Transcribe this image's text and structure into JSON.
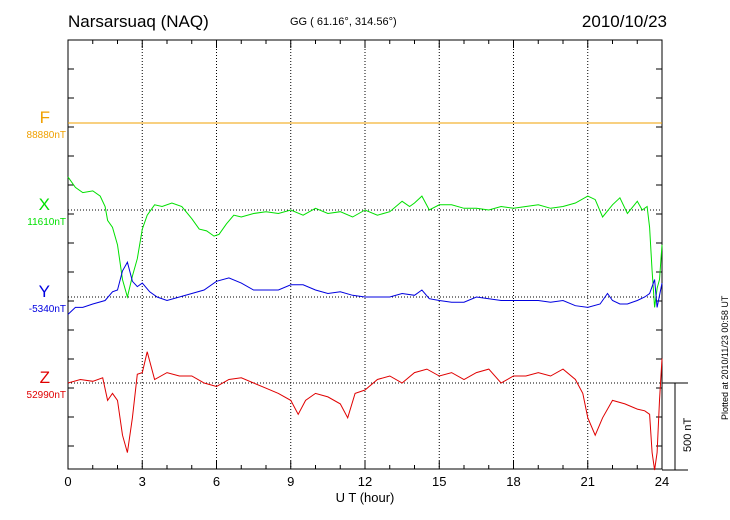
{
  "header": {
    "title": "Narsarsuaq (NAQ)",
    "coords": "GG ( 61.16°, 314.56°)",
    "date": "2010/10/23"
  },
  "footer": {
    "plotted": "Plotted at 2010/11/23 00:58 UT"
  },
  "scale_bar": {
    "label": "500 nT",
    "nT": 500
  },
  "chart_data": {
    "type": "line",
    "xlabel": "U T (hour)",
    "xlim": [
      0,
      24
    ],
    "xticks": [
      0,
      3,
      6,
      9,
      12,
      15,
      18,
      21,
      24
    ],
    "xtick_labels": [
      "0",
      "3",
      "6",
      "9",
      "12",
      "15",
      "18",
      "21",
      "24"
    ],
    "grid": true,
    "nT_per_panel_unit": 500,
    "series": [
      {
        "name": "F",
        "baseline_label": "88880nT",
        "color": "#f0a000",
        "x": [
          0,
          24
        ],
        "offset_nT": [
          0,
          0
        ]
      },
      {
        "name": "X",
        "baseline_label": "11610nT",
        "color": "#00e000",
        "x": [
          0,
          0.3,
          0.6,
          1.0,
          1.3,
          1.5,
          1.6,
          1.8,
          2.0,
          2.2,
          2.4,
          2.6,
          2.8,
          3.0,
          3.2,
          3.5,
          3.8,
          4.2,
          4.6,
          5.0,
          5.3,
          5.6,
          5.9,
          6.1,
          6.4,
          6.7,
          7.0,
          7.5,
          8.0,
          8.5,
          9.0,
          9.5,
          10.0,
          10.5,
          11.0,
          11.5,
          12.0,
          12.5,
          13.0,
          13.5,
          13.8,
          14.0,
          14.3,
          14.6,
          15.0,
          15.5,
          16.0,
          16.5,
          17.0,
          17.5,
          18.0,
          18.5,
          19.0,
          19.5,
          20.0,
          20.5,
          21.0,
          21.3,
          21.6,
          22.0,
          22.3,
          22.6,
          23.0,
          23.2,
          23.4,
          23.5,
          23.6,
          23.7,
          23.8,
          23.9,
          24.0
        ],
        "offset_nT": [
          190,
          130,
          100,
          110,
          80,
          20,
          -60,
          -100,
          -200,
          -400,
          -500,
          -380,
          -280,
          -110,
          -30,
          30,
          20,
          40,
          20,
          -50,
          -110,
          -120,
          -150,
          -140,
          -80,
          -30,
          -40,
          -20,
          -10,
          -20,
          0,
          -30,
          10,
          -20,
          -10,
          -40,
          0,
          -30,
          -10,
          50,
          20,
          40,
          80,
          0,
          30,
          30,
          10,
          10,
          0,
          20,
          10,
          20,
          30,
          10,
          20,
          40,
          80,
          60,
          -40,
          30,
          70,
          -20,
          50,
          0,
          20,
          -100,
          -350,
          -560,
          -450,
          -400,
          -200
        ]
      },
      {
        "name": "Y",
        "baseline_label": "-5340nT",
        "color": "#0000e0",
        "x": [
          0,
          0.3,
          0.6,
          1.0,
          1.5,
          1.8,
          2.0,
          2.2,
          2.4,
          2.6,
          2.8,
          3.0,
          3.3,
          3.6,
          4.0,
          4.5,
          5.0,
          5.5,
          6.0,
          6.5,
          7.0,
          7.5,
          8.0,
          8.5,
          9.0,
          9.5,
          10.0,
          10.5,
          11.0,
          11.5,
          12.0,
          12.5,
          13.0,
          13.5,
          14.0,
          14.3,
          14.6,
          15.0,
          15.5,
          16.0,
          16.5,
          17.0,
          17.5,
          18.0,
          18.5,
          19.0,
          19.5,
          20.0,
          20.5,
          21.0,
          21.5,
          21.8,
          22.0,
          22.3,
          22.6,
          23.0,
          23.3,
          23.5,
          23.7,
          23.8,
          24.0
        ],
        "offset_nT": [
          -100,
          -60,
          -60,
          -40,
          -20,
          30,
          40,
          150,
          200,
          90,
          60,
          80,
          30,
          0,
          -20,
          0,
          20,
          40,
          90,
          110,
          80,
          40,
          40,
          40,
          70,
          70,
          40,
          20,
          30,
          10,
          0,
          0,
          0,
          20,
          10,
          40,
          -10,
          -20,
          -30,
          -30,
          0,
          -10,
          -20,
          -20,
          -20,
          -20,
          -30,
          -20,
          -50,
          -60,
          -40,
          20,
          -20,
          -40,
          -40,
          -20,
          0,
          20,
          100,
          -60,
          80
        ]
      },
      {
        "name": "Z",
        "baseline_label": "52990nT",
        "color": "#e00000",
        "x": [
          0,
          0.5,
          1.0,
          1.4,
          1.6,
          1.8,
          2.0,
          2.2,
          2.4,
          2.6,
          2.8,
          3.0,
          3.2,
          3.5,
          4.0,
          4.5,
          5.0,
          5.5,
          6.0,
          6.5,
          7.0,
          7.5,
          8.0,
          8.5,
          9.0,
          9.3,
          9.6,
          10.0,
          10.5,
          11.0,
          11.3,
          11.6,
          12.0,
          12.5,
          13.0,
          13.5,
          14.0,
          14.5,
          15.0,
          15.5,
          16.0,
          16.5,
          17.0,
          17.5,
          18.0,
          18.5,
          19.0,
          19.5,
          20.0,
          20.5,
          20.8,
          21.0,
          21.3,
          21.6,
          22.0,
          22.5,
          23.0,
          23.3,
          23.5,
          23.6,
          23.7,
          23.8,
          23.9,
          24.0
        ],
        "offset_nT": [
          0,
          20,
          10,
          30,
          -100,
          -60,
          -100,
          -300,
          -400,
          -200,
          50,
          60,
          180,
          20,
          60,
          40,
          40,
          0,
          -20,
          20,
          30,
          0,
          -30,
          -60,
          -100,
          -180,
          -100,
          -60,
          -80,
          -120,
          -200,
          -60,
          -40,
          20,
          40,
          0,
          60,
          80,
          40,
          60,
          20,
          60,
          80,
          0,
          40,
          40,
          60,
          40,
          80,
          20,
          -60,
          -200,
          -300,
          -200,
          -100,
          -120,
          -150,
          -160,
          -180,
          -400,
          -500,
          -400,
          -100,
          140
        ]
      }
    ]
  }
}
